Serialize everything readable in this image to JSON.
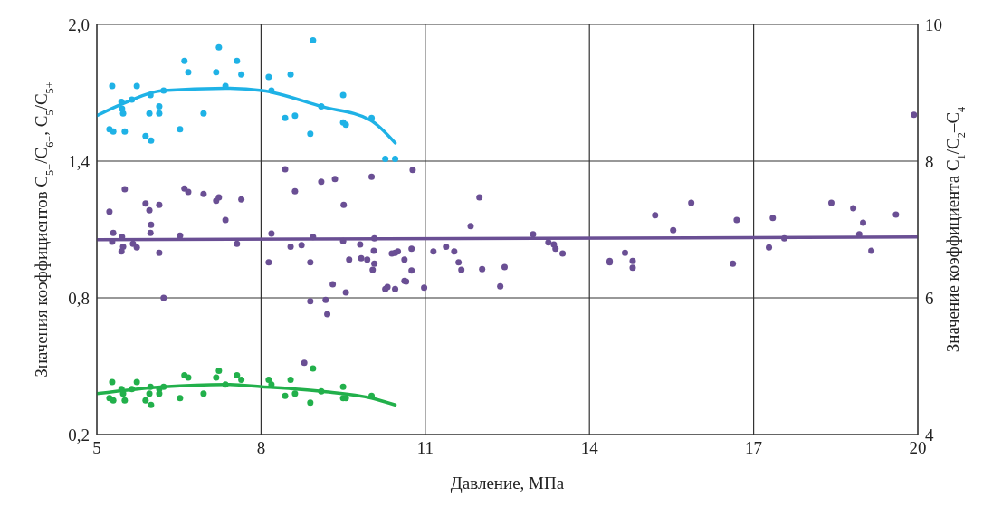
{
  "chart_data": {
    "type": "scatter",
    "xlabel": "Давление, МПа",
    "ylabel": "Значения коэффициентов C$_{5+}$/C$_{6+}$, C$_{5}$/C$_{5+}$",
    "y2label": "Значение коэффициента C$_{1}$/C$_{2}$–C$_{4}$",
    "xlim": [
      5,
      20
    ],
    "xticks": [
      5,
      8,
      11,
      14,
      17,
      20
    ],
    "ylim": [
      0.2,
      2.0
    ],
    "yticks": [
      {
        "value": 0.2,
        "label": "0,2"
      },
      {
        "value": 0.8,
        "label": "0,8"
      },
      {
        "value": 1.4,
        "label": "1,4"
      },
      {
        "value": 2.0,
        "label": "2,0"
      }
    ],
    "y2lim": [
      4,
      10
    ],
    "y2ticks": [
      4,
      6,
      8,
      10
    ],
    "grid": true,
    "series": [
      {
        "marker": "circle",
        "color": "#1fb2e6",
        "x": [
          5.28,
          5.73,
          6.6,
          6.67,
          7.23,
          7.18,
          7.56,
          7.64,
          7.35,
          6.22,
          5.98,
          5.64,
          5.45,
          5.46,
          5.48,
          5.96,
          6.14,
          6.14,
          6.95,
          5.23,
          5.3,
          5.51,
          5.89,
          5.99,
          6.52,
          8.14,
          8.54,
          8.95,
          8.19,
          8.44,
          8.62,
          8.9,
          9.1,
          9.5,
          10.02,
          9.5,
          9.55,
          10.27,
          10.45
        ],
        "values": [
          1.73,
          1.73,
          1.84,
          1.79,
          1.9,
          1.79,
          1.84,
          1.78,
          1.73,
          1.71,
          1.69,
          1.67,
          1.66,
          1.63,
          1.61,
          1.61,
          1.64,
          1.61,
          1.61,
          1.54,
          1.53,
          1.53,
          1.51,
          1.49,
          1.54,
          1.77,
          1.78,
          1.93,
          1.71,
          1.59,
          1.6,
          1.52,
          1.64,
          1.69,
          1.59,
          1.57,
          1.56,
          1.41,
          1.41
        ]
      },
      {
        "type": "line",
        "marker": "none",
        "color": "#1fb2e6",
        "x": [
          5,
          5.45,
          6.22,
          7.35,
          8.02,
          9.1,
          10,
          10.45
        ],
        "values": [
          1.6,
          1.65,
          1.71,
          1.72,
          1.71,
          1.64,
          1.58,
          1.48
        ]
      },
      {
        "marker": "circle",
        "color": "#22b04b",
        "x": [
          5.28,
          5.23,
          5.3,
          5.45,
          5.48,
          5.51,
          5.64,
          5.73,
          5.89,
          5.99,
          5.98,
          5.96,
          6.14,
          6.14,
          6.22,
          6.52,
          6.6,
          6.67,
          6.95,
          7.18,
          7.23,
          7.35,
          7.56,
          7.64,
          8.14,
          8.19,
          8.44,
          8.54,
          8.62,
          8.9,
          8.95,
          9.1,
          9.5,
          9.5,
          9.55,
          10.02
        ],
        "values": [
          0.43,
          0.36,
          0.35,
          0.4,
          0.38,
          0.35,
          0.4,
          0.43,
          0.35,
          0.33,
          0.41,
          0.38,
          0.4,
          0.38,
          0.41,
          0.36,
          0.46,
          0.45,
          0.38,
          0.45,
          0.48,
          0.42,
          0.46,
          0.44,
          0.44,
          0.42,
          0.37,
          0.44,
          0.38,
          0.34,
          0.49,
          0.39,
          0.41,
          0.36,
          0.36,
          0.37
        ]
      },
      {
        "type": "line",
        "marker": "none",
        "color": "#22b04b",
        "x": [
          5,
          6.22,
          7.35,
          8.02,
          9.1,
          10.02,
          10.45
        ],
        "values": [
          0.38,
          0.41,
          0.42,
          0.41,
          0.39,
          0.36,
          0.33
        ]
      },
      {
        "axis": "y2",
        "marker": "circle",
        "color": "#6a4f94",
        "x": [
          5.51,
          5.23,
          5.89,
          5.96,
          6.14,
          5.99,
          5.98,
          5.3,
          5.46,
          5.28,
          5.66,
          5.73,
          5.48,
          5.45,
          6.14,
          6.52,
          6.22,
          6.6,
          6.67,
          6.95,
          7.18,
          7.23,
          7.64,
          7.35,
          7.56,
          8.19,
          8.14,
          8.44,
          8.62,
          8.54,
          8.74,
          8.95,
          8.9,
          9.1,
          9.35,
          9.51,
          9.5,
          9.61,
          9.31,
          9.55,
          8.9,
          9.18,
          9.21,
          8.79,
          9.81,
          9.83,
          9.94,
          10.02,
          10.07,
          10.06,
          10.07,
          10.04,
          10.39,
          10.45,
          10.5,
          10.62,
          10.75,
          10.75,
          10.77,
          10.62,
          10.65,
          10.27,
          10.31,
          10.45,
          10.98,
          11.15,
          11.38,
          11.53,
          11.61,
          11.66,
          11.83,
          11.99,
          12.04,
          12.37,
          12.45,
          12.97,
          13.25,
          13.35,
          13.38,
          13.51,
          14.37,
          14.37,
          14.65,
          14.79,
          14.79,
          15.2,
          15.53,
          15.86,
          16.62,
          16.69,
          17.28,
          17.35,
          17.56,
          18.42,
          18.82,
          19.0,
          18.93,
          19.15,
          19.6,
          19.93
        ],
        "values": [
          7.59,
          7.26,
          7.38,
          7.28,
          7.36,
          7.07,
          6.95,
          6.95,
          6.89,
          6.82,
          6.79,
          6.74,
          6.75,
          6.68,
          6.66,
          6.91,
          6.0,
          7.6,
          7.55,
          7.52,
          7.42,
          7.47,
          7.44,
          7.14,
          6.79,
          6.94,
          6.52,
          7.88,
          7.56,
          6.75,
          6.77,
          6.89,
          6.52,
          7.7,
          7.74,
          7.36,
          6.83,
          6.56,
          6.2,
          6.08,
          5.95,
          5.97,
          5.76,
          5.05,
          6.78,
          6.58,
          6.56,
          7.77,
          6.87,
          6.69,
          6.5,
          6.41,
          6.65,
          6.66,
          6.68,
          6.56,
          6.72,
          6.4,
          7.87,
          6.25,
          6.24,
          6.13,
          6.16,
          6.13,
          6.15,
          6.68,
          6.75,
          6.68,
          6.52,
          6.41,
          7.05,
          7.47,
          6.42,
          6.17,
          6.45,
          6.93,
          6.81,
          6.78,
          6.72,
          6.65,
          6.54,
          6.52,
          6.66,
          6.54,
          6.44,
          7.21,
          6.99,
          7.39,
          6.5,
          7.14,
          6.74,
          7.17,
          6.87,
          7.39,
          7.31,
          7.1,
          6.93,
          6.69,
          7.22,
          8.68
        ]
      },
      {
        "type": "line",
        "marker": "none",
        "axis": "y2",
        "color": "#6a4f94",
        "x": [
          5,
          20
        ],
        "values": [
          6.85,
          6.89
        ]
      }
    ]
  }
}
